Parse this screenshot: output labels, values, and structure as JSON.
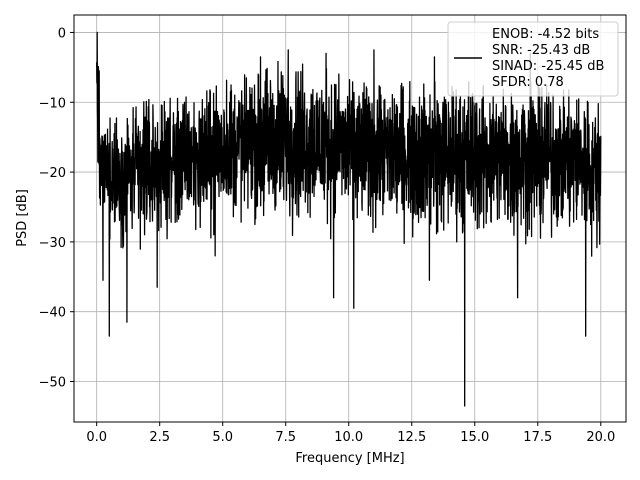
{
  "chart_data": {
    "type": "line",
    "title": "",
    "xlabel": "Frequency [MHz]",
    "ylabel": "PSD [dB]",
    "xlim": [
      -0.9,
      21.0
    ],
    "ylim": [
      -55.8,
      2.5
    ],
    "x_ticks": [
      0.0,
      2.5,
      5.0,
      7.5,
      10.0,
      12.5,
      15.0,
      17.5,
      20.0
    ],
    "x_tick_labels": [
      "0.0",
      "2.5",
      "5.0",
      "7.5",
      "10.0",
      "12.5",
      "15.0",
      "17.5",
      "20.0"
    ],
    "y_ticks": [
      0,
      -10,
      -20,
      -30,
      -40,
      -50
    ],
    "y_tick_labels": [
      "0",
      "−10",
      "−20",
      "−30",
      "−40",
      "−50"
    ],
    "grid": true,
    "legend_position": "top-right",
    "legend_entries": [
      "ENOB: -4.52 bits",
      "SNR: -25.43 dB",
      "SINAD: -25.45 dB",
      "SFDR: 0.78"
    ],
    "series_color": "#000000",
    "envelope": {
      "x": [
        0.0,
        0.05,
        0.1,
        0.2,
        0.5,
        1.0,
        1.5,
        2.5,
        3.5,
        5.0,
        6.0,
        7.0,
        7.5,
        8.0,
        9.0,
        10.0,
        11.0,
        12.5,
        14.0,
        15.0,
        16.0,
        17.5,
        19.0,
        20.0
      ],
      "upper": [
        -1,
        0,
        -12,
        -13,
        -12,
        -11,
        -10,
        -9,
        -9,
        -6,
        -5,
        -4,
        -4,
        -4,
        -5,
        -6,
        -6,
        -7,
        -7,
        -6,
        -7,
        -7,
        -7,
        -10
      ],
      "lower": [
        -13,
        -22,
        -25,
        -26,
        -28,
        -30,
        -30,
        -29,
        -28,
        -27,
        -27,
        -27,
        -27,
        -27,
        -27,
        -27,
        -28,
        -28,
        -29,
        -29,
        -29,
        -29,
        -29,
        -31
      ]
    },
    "peaks_high": [
      {
        "x": 0.02,
        "y": 0.0
      },
      {
        "x": 0.1,
        "y": -5.5
      },
      {
        "x": 6.5,
        "y": -3.5
      },
      {
        "x": 7.6,
        "y": -2.5
      },
      {
        "x": 9.1,
        "y": -3.0
      },
      {
        "x": 11.0,
        "y": -2.5
      },
      {
        "x": 13.4,
        "y": -3.5
      },
      {
        "x": 17.2,
        "y": -3.0
      }
    ],
    "dips_low": [
      {
        "x": 0.25,
        "y": -35.5
      },
      {
        "x": 0.5,
        "y": -43.5
      },
      {
        "x": 1.2,
        "y": -41.5
      },
      {
        "x": 2.4,
        "y": -36.5
      },
      {
        "x": 4.7,
        "y": -32.0
      },
      {
        "x": 9.4,
        "y": -38.0
      },
      {
        "x": 10.2,
        "y": -39.5
      },
      {
        "x": 13.2,
        "y": -35.5
      },
      {
        "x": 14.6,
        "y": -53.5
      },
      {
        "x": 16.7,
        "y": -38.0
      },
      {
        "x": 19.4,
        "y": -43.5
      }
    ]
  }
}
